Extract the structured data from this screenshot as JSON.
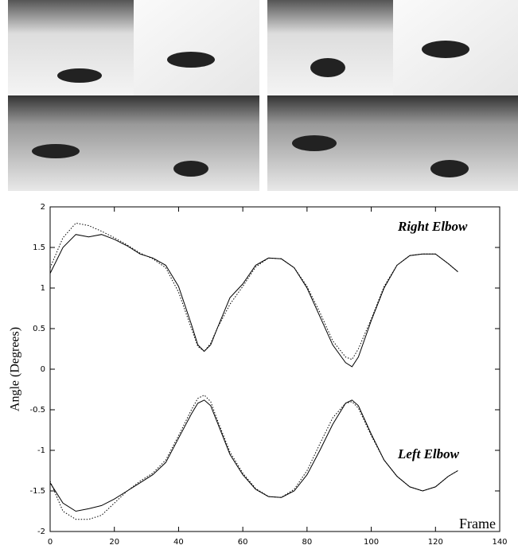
{
  "chart_data": {
    "type": "line",
    "annotations": [
      "Right Elbow",
      "Left Elbow"
    ],
    "xlabel": "Frame",
    "ylabel": "Angle (Degrees)",
    "x": [
      0,
      4,
      8,
      12,
      16,
      20,
      24,
      28,
      32,
      36,
      40,
      44,
      46,
      48,
      50,
      52,
      56,
      60,
      64,
      68,
      72,
      76,
      80,
      84,
      88,
      92,
      94,
      96,
      100,
      104,
      108,
      112,
      116,
      120,
      124,
      127
    ],
    "series": [
      {
        "color": "#000000",
        "style": "solid",
        "values": [
          1.18,
          1.5,
          1.66,
          1.63,
          1.66,
          1.6,
          1.52,
          1.42,
          1.37,
          1.28,
          1.02,
          0.55,
          0.3,
          0.22,
          0.3,
          0.5,
          0.88,
          1.05,
          1.28,
          1.37,
          1.36,
          1.25,
          1.0,
          0.65,
          0.3,
          0.08,
          0.03,
          0.15,
          0.6,
          1.0,
          1.28,
          1.4,
          1.42,
          1.42,
          1.3,
          1.2
        ]
      },
      {
        "color": "#000000",
        "style": "dotted",
        "values": [
          1.25,
          1.62,
          1.8,
          1.77,
          1.7,
          1.62,
          1.53,
          1.43,
          1.36,
          1.25,
          0.95,
          0.5,
          0.28,
          0.22,
          0.32,
          0.5,
          0.8,
          1.02,
          1.26,
          1.37,
          1.36,
          1.25,
          1.02,
          0.7,
          0.35,
          0.15,
          0.12,
          0.25,
          0.62,
          1.02,
          1.28,
          1.4,
          1.42,
          1.42,
          1.3,
          1.2
        ]
      },
      {
        "color": "#000000",
        "style": "solid",
        "values": [
          -1.4,
          -1.65,
          -1.75,
          -1.72,
          -1.68,
          -1.6,
          -1.5,
          -1.4,
          -1.3,
          -1.15,
          -0.85,
          -0.55,
          -0.42,
          -0.38,
          -0.45,
          -0.65,
          -1.05,
          -1.3,
          -1.48,
          -1.57,
          -1.58,
          -1.5,
          -1.3,
          -1.0,
          -0.68,
          -0.42,
          -0.38,
          -0.45,
          -0.8,
          -1.12,
          -1.32,
          -1.45,
          -1.5,
          -1.45,
          -1.32,
          -1.25
        ]
      },
      {
        "color": "#000000",
        "style": "dotted",
        "values": [
          -1.38,
          -1.75,
          -1.85,
          -1.85,
          -1.8,
          -1.65,
          -1.5,
          -1.38,
          -1.28,
          -1.12,
          -0.82,
          -0.5,
          -0.36,
          -0.32,
          -0.4,
          -0.62,
          -1.02,
          -1.28,
          -1.47,
          -1.57,
          -1.58,
          -1.48,
          -1.25,
          -0.92,
          -0.6,
          -0.42,
          -0.4,
          -0.48,
          -0.82,
          -1.12,
          -1.32,
          -1.45,
          -1.5,
          -1.45,
          -1.32,
          -1.25
        ]
      }
    ],
    "xlim": [
      0,
      140
    ],
    "xticks": [
      0,
      20,
      40,
      60,
      80,
      100,
      120,
      140
    ],
    "ylim": [
      -2,
      2
    ],
    "yticks": [
      -2,
      -1.5,
      -1,
      -0.5,
      0,
      0.5,
      1,
      1.5,
      2
    ]
  }
}
